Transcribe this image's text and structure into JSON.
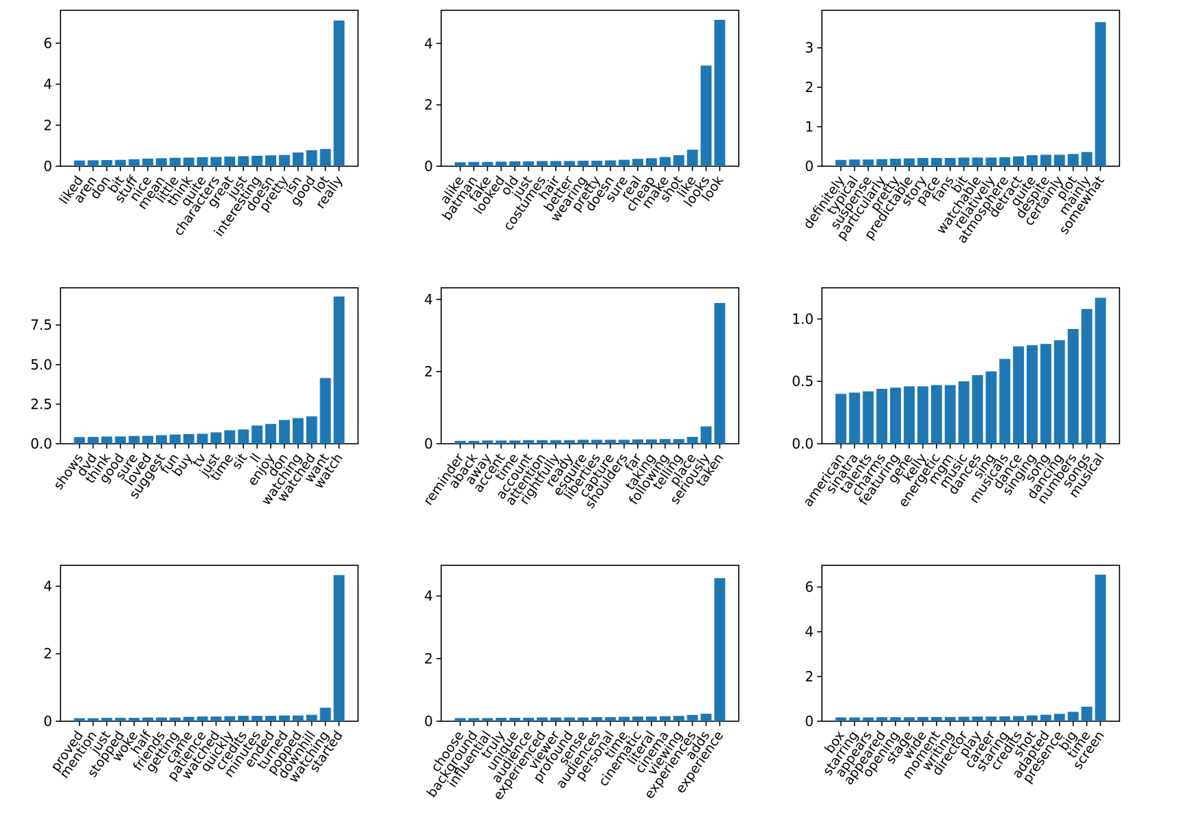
{
  "figure": {
    "background": "#ffffff",
    "bar_color": "#1f77b4",
    "axis_color": "#000000",
    "text_color": "#000000",
    "grid": "off",
    "legend": "none",
    "layout": "3x3 grid of bar subplots, x tick labels rotated"
  },
  "chart_data": [
    {
      "type": "bar",
      "position": "row0-col0",
      "title": "",
      "xlabel": "",
      "ylabel": "",
      "categories": [
        "liked",
        "aren",
        "don",
        "bit",
        "stuff",
        "nice",
        "mean",
        "little",
        "think",
        "quite",
        "characters",
        "great",
        "just",
        "interesting",
        "doesn",
        "pretty",
        "isn",
        "good",
        "lot",
        "really"
      ],
      "values": [
        0.28,
        0.29,
        0.3,
        0.31,
        0.34,
        0.37,
        0.39,
        0.41,
        0.42,
        0.44,
        0.45,
        0.47,
        0.49,
        0.51,
        0.53,
        0.55,
        0.67,
        0.78,
        0.84,
        7.1
      ],
      "yticks": [
        0,
        2,
        4,
        6
      ],
      "ytick_labels": [
        "0",
        "2",
        "4",
        "6"
      ],
      "ylim": [
        0,
        7.6
      ]
    },
    {
      "type": "bar",
      "position": "row0-col1",
      "title": "",
      "xlabel": "",
      "ylabel": "",
      "categories": [
        "alike",
        "batman",
        "fake",
        "looked",
        "old",
        "just",
        "costumes",
        "hair",
        "better",
        "wearing",
        "pretty",
        "doesn",
        "sure",
        "real",
        "cheap",
        "make",
        "shot",
        "like",
        "looks",
        "look"
      ],
      "values": [
        0.13,
        0.14,
        0.14,
        0.15,
        0.16,
        0.16,
        0.17,
        0.17,
        0.17,
        0.18,
        0.18,
        0.19,
        0.21,
        0.24,
        0.26,
        0.3,
        0.36,
        0.54,
        3.28,
        4.77
      ],
      "yticks": [
        0,
        2,
        4
      ],
      "ytick_labels": [
        "0",
        "2",
        "4"
      ],
      "ylim": [
        0,
        5.08
      ]
    },
    {
      "type": "bar",
      "position": "row0-col2",
      "title": "",
      "xlabel": "",
      "ylabel": "",
      "categories": [
        "definitely",
        "typical",
        "suspense",
        "particularly",
        "pretty",
        "predictable",
        "story",
        "pace",
        "fans",
        "bit",
        "watchable",
        "relatively",
        "atmosphere",
        "detract",
        "quite",
        "despite",
        "certainly",
        "plot",
        "mainly",
        "somewhat"
      ],
      "values": [
        0.16,
        0.17,
        0.17,
        0.18,
        0.19,
        0.2,
        0.21,
        0.21,
        0.21,
        0.22,
        0.22,
        0.22,
        0.23,
        0.25,
        0.28,
        0.29,
        0.29,
        0.31,
        0.36,
        3.65
      ],
      "yticks": [
        0,
        1,
        2,
        3
      ],
      "ytick_labels": [
        "0",
        "1",
        "2",
        "3"
      ],
      "ylim": [
        0,
        3.95
      ]
    },
    {
      "type": "bar",
      "position": "row1-col0",
      "title": "",
      "xlabel": "",
      "ylabel": "",
      "categories": [
        "shows",
        "dvd",
        "think",
        "good",
        "sure",
        "loved",
        "suggest",
        "fun",
        "buy",
        "tv",
        "just",
        "time",
        "sit",
        "ll",
        "enjoy",
        "don",
        "watching",
        "watched",
        "want",
        "watch"
      ],
      "values": [
        0.42,
        0.43,
        0.45,
        0.46,
        0.49,
        0.5,
        0.54,
        0.58,
        0.61,
        0.63,
        0.72,
        0.85,
        0.9,
        1.15,
        1.25,
        1.5,
        1.62,
        1.73,
        4.15,
        9.3
      ],
      "yticks": [
        0,
        2.5,
        5.0,
        7.5
      ],
      "ytick_labels": [
        "0.0",
        "2.5",
        "5.0",
        "7.5"
      ],
      "ylim": [
        0,
        9.85
      ]
    },
    {
      "type": "bar",
      "position": "row1-col1",
      "title": "",
      "xlabel": "",
      "ylabel": "",
      "categories": [
        "reminder",
        "aback",
        "away",
        "accent",
        "time",
        "account",
        "attention",
        "rightfully",
        "ready",
        "esquire",
        "liberties",
        "capture",
        "shoulders",
        "far",
        "taking",
        "following",
        "telling",
        "place",
        "seriously",
        "taken"
      ],
      "values": [
        0.08,
        0.08,
        0.09,
        0.09,
        0.09,
        0.1,
        0.1,
        0.1,
        0.1,
        0.11,
        0.11,
        0.11,
        0.11,
        0.12,
        0.12,
        0.13,
        0.13,
        0.19,
        0.48,
        3.9
      ],
      "yticks": [
        0,
        2,
        4
      ],
      "ytick_labels": [
        "0",
        "2",
        "4"
      ],
      "ylim": [
        0,
        4.32
      ]
    },
    {
      "type": "bar",
      "position": "row1-col2",
      "title": "",
      "xlabel": "",
      "ylabel": "",
      "categories": [
        "american",
        "sinatra",
        "talents",
        "charms",
        "featuring",
        "gene",
        "kelly",
        "energetic",
        "mgm",
        "music",
        "dances",
        "sing",
        "musicals",
        "dance",
        "singing",
        "song",
        "dancing",
        "numbers",
        "songs",
        "musical"
      ],
      "values": [
        0.4,
        0.41,
        0.42,
        0.44,
        0.45,
        0.46,
        0.46,
        0.47,
        0.47,
        0.5,
        0.55,
        0.58,
        0.68,
        0.78,
        0.79,
        0.8,
        0.83,
        0.92,
        1.08,
        1.17
      ],
      "yticks": [
        0,
        0.5,
        1.0
      ],
      "ytick_labels": [
        "0.0",
        "0.5",
        "1.0"
      ],
      "ylim": [
        0,
        1.25
      ]
    },
    {
      "type": "bar",
      "position": "row2-col0",
      "title": "",
      "xlabel": "",
      "ylabel": "",
      "categories": [
        "proved",
        "mention",
        "just",
        "stopped",
        "woke",
        "half",
        "friends",
        "getting",
        "came",
        "patience",
        "watched",
        "quickly",
        "credits",
        "minutes",
        "ended",
        "turned",
        "popped",
        "downhill",
        "watching",
        "started"
      ],
      "values": [
        0.09,
        0.09,
        0.1,
        0.1,
        0.1,
        0.11,
        0.11,
        0.11,
        0.13,
        0.14,
        0.14,
        0.15,
        0.16,
        0.16,
        0.16,
        0.17,
        0.17,
        0.19,
        0.4,
        4.33
      ],
      "yticks": [
        0,
        2,
        4
      ],
      "ytick_labels": [
        "0",
        "2",
        "4"
      ],
      "ylim": [
        0,
        4.62
      ]
    },
    {
      "type": "bar",
      "position": "row2-col1",
      "title": "",
      "xlabel": "",
      "ylabel": "",
      "categories": [
        "choose",
        "background",
        "influential",
        "truly",
        "unique",
        "audience",
        "experienced",
        "viewer",
        "profound",
        "sense",
        "audiences",
        "personal",
        "time",
        "cinematic",
        "literal",
        "cinema",
        "viewing",
        "experiences",
        "adds",
        "experience"
      ],
      "values": [
        0.1,
        0.1,
        0.1,
        0.11,
        0.11,
        0.11,
        0.12,
        0.12,
        0.12,
        0.12,
        0.13,
        0.13,
        0.14,
        0.15,
        0.15,
        0.16,
        0.17,
        0.2,
        0.24,
        4.57
      ],
      "yticks": [
        0,
        2,
        4
      ],
      "ytick_labels": [
        "0",
        "2",
        "4"
      ],
      "ylim": [
        0,
        4.98
      ]
    },
    {
      "type": "bar",
      "position": "row2-col2",
      "title": "",
      "xlabel": "",
      "ylabel": "",
      "categories": [
        "box",
        "starring",
        "appears",
        "appeared",
        "opening",
        "stage",
        "wide",
        "moment",
        "writing",
        "director",
        "play",
        "career",
        "staring",
        "credits",
        "shot",
        "adapted",
        "presence",
        "big",
        "time",
        "screen"
      ],
      "values": [
        0.17,
        0.17,
        0.17,
        0.18,
        0.18,
        0.18,
        0.19,
        0.19,
        0.19,
        0.2,
        0.21,
        0.21,
        0.22,
        0.23,
        0.26,
        0.29,
        0.33,
        0.42,
        0.65,
        6.55
      ],
      "yticks": [
        0,
        2,
        4,
        6
      ],
      "ytick_labels": [
        "0",
        "2",
        "4",
        "6"
      ],
      "ylim": [
        0,
        6.97
      ]
    }
  ]
}
